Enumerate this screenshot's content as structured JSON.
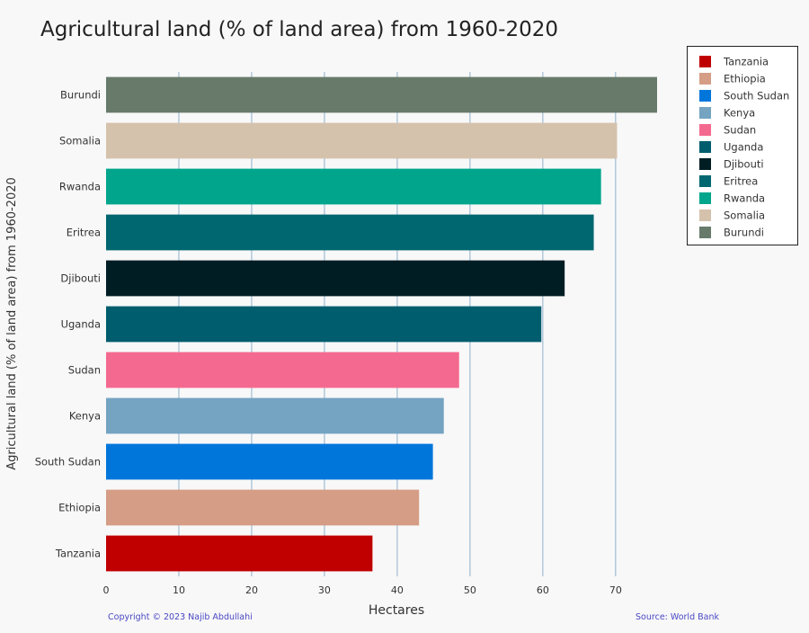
{
  "chart_data": {
    "type": "bar",
    "orientation": "horizontal",
    "title": "Agricultural land (% of land area) from 1960-2020",
    "xlabel": "Hectares",
    "ylabel": "Agricultural land (% of land area) from 1960-2020",
    "xlim": [
      0,
      75.7
    ],
    "xticks": [
      0,
      10,
      20,
      30,
      40,
      50,
      60,
      70
    ],
    "grid": true,
    "legend_position": "top-right",
    "categories": [
      "Tanzania",
      "Ethiopia",
      "South Sudan",
      "Kenya",
      "Sudan",
      "Uganda",
      "Djibouti",
      "Eritrea",
      "Rwanda",
      "Somalia",
      "Burundi"
    ],
    "values": [
      36.6,
      43.0,
      44.9,
      46.4,
      48.5,
      59.8,
      63.0,
      67.0,
      68.0,
      70.2,
      75.7
    ],
    "colors": [
      "#c00000",
      "#d59d85",
      "#0076db",
      "#75a3c2",
      "#f4698f",
      "#005d6e",
      "#001d24",
      "#006670",
      "#00a58c",
      "#d5c2ad",
      "#687b6b"
    ]
  },
  "footer": {
    "copyright": "Copyright © 2023 Najib Abdullahi",
    "source": "Source: World Bank"
  }
}
